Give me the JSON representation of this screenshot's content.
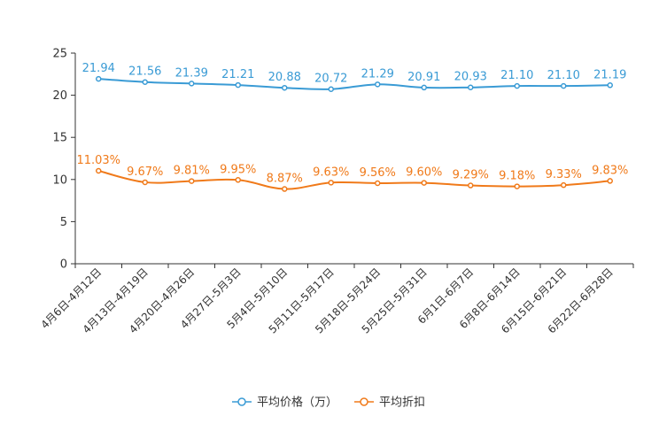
{
  "chart_data": {
    "type": "line",
    "categories": [
      "4月6日-4月12日",
      "4月13日-4月19日",
      "4月20日-4月26日",
      "4月27日-5月3日",
      "5月4日-5月10日",
      "5月11日-5月17日",
      "5月18日-5月24日",
      "5月25日-5月31日",
      "6月1日-6月7日",
      "6月8日-6月14日",
      "6月15日-6月21日",
      "6月22日-6月28日"
    ],
    "ylim": [
      0,
      25
    ],
    "yticks": [
      0,
      5,
      10,
      15,
      20,
      25
    ],
    "series": [
      {
        "name": "平均价格（万）",
        "color": "#3a9bd5",
        "values": [
          21.94,
          21.56,
          21.39,
          21.21,
          20.88,
          20.72,
          21.29,
          20.91,
          20.93,
          21.1,
          21.1,
          21.19
        ],
        "labels": [
          "21.94",
          "21.56",
          "21.39",
          "21.21",
          "20.88",
          "20.72",
          "21.29",
          "20.91",
          "20.93",
          "21.10",
          "21.10",
          "21.19"
        ]
      },
      {
        "name": "平均折扣",
        "color": "#f07a1a",
        "values": [
          11.03,
          9.67,
          9.81,
          9.95,
          8.87,
          9.63,
          9.56,
          9.6,
          9.29,
          9.18,
          9.33,
          9.83
        ],
        "labels": [
          "11.03%",
          "9.67%",
          "9.81%",
          "9.95%",
          "8.87%",
          "9.63%",
          "9.56%",
          "9.60%",
          "9.29%",
          "9.18%",
          "9.33%",
          "9.83%"
        ]
      }
    ]
  }
}
